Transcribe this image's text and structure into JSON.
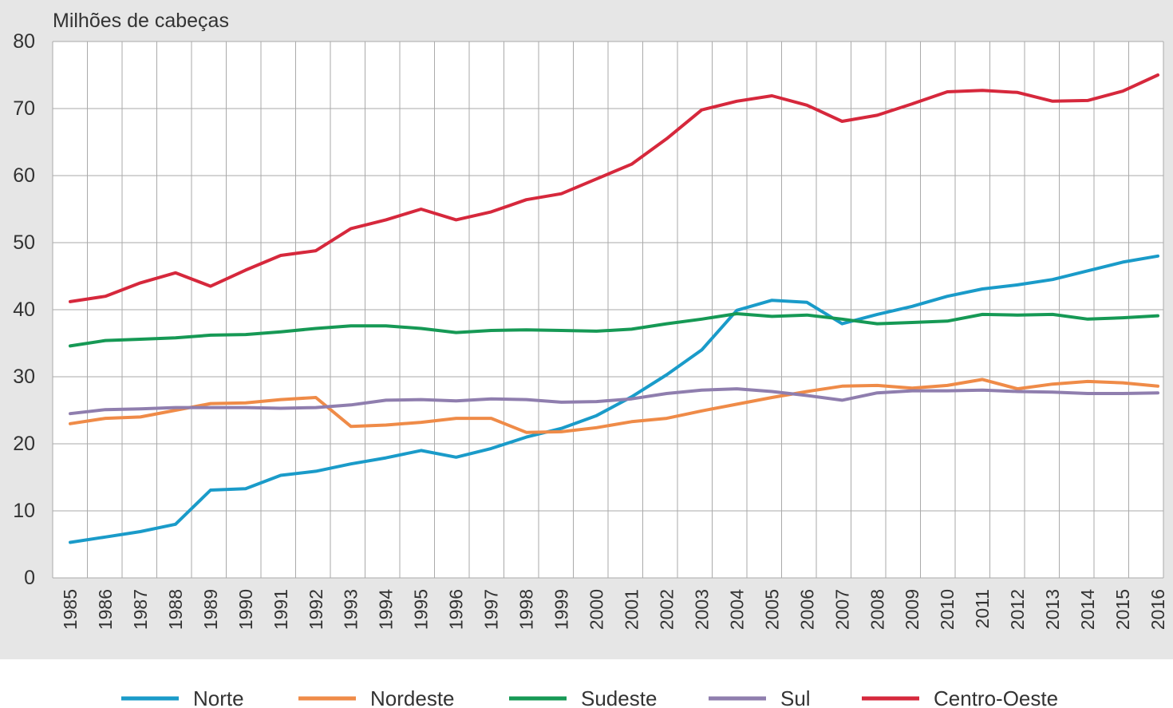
{
  "chart_data": {
    "type": "line",
    "title": "",
    "ylabel": "Milhões de cabeças",
    "xlabel": "",
    "ylim": [
      0,
      80
    ],
    "yticks": [
      "0",
      "10",
      "20",
      "30",
      "40",
      "50",
      "60",
      "70",
      "80"
    ],
    "grid": true,
    "legend_position": "bottom",
    "categories": [
      "1985",
      "1986",
      "1987",
      "1988",
      "1989",
      "1990",
      "1991",
      "1992",
      "1993",
      "1994",
      "1995",
      "1996",
      "1997",
      "1998",
      "1999",
      "2000",
      "2001",
      "2002",
      "2003",
      "2004",
      "2005",
      "2006",
      "2007",
      "2008",
      "2009",
      "2010",
      "2011",
      "2012",
      "2013",
      "2014",
      "2015",
      "2016"
    ],
    "series": [
      {
        "name": "Norte",
        "color": "#1a9bc9",
        "values": [
          5.3,
          6.1,
          6.9,
          8.0,
          13.1,
          13.3,
          15.3,
          15.9,
          17.0,
          17.9,
          19.0,
          18.0,
          19.3,
          21.0,
          22.3,
          24.2,
          27.0,
          30.3,
          34.0,
          39.9,
          41.4,
          41.1,
          37.9,
          39.3,
          40.5,
          42.0,
          43.1,
          43.7,
          44.5,
          45.8,
          47.1,
          48.0
        ]
      },
      {
        "name": "Nordeste",
        "color": "#ef8b48",
        "values": [
          23.0,
          23.8,
          24.0,
          25.0,
          26.0,
          26.1,
          26.6,
          26.9,
          22.6,
          22.8,
          23.2,
          23.8,
          23.8,
          21.7,
          21.8,
          22.4,
          23.3,
          23.8,
          24.9,
          25.9,
          26.9,
          27.8,
          28.6,
          28.7,
          28.3,
          28.7,
          29.6,
          28.2,
          28.9,
          29.3,
          29.1,
          28.6
        ]
      },
      {
        "name": "Sudeste",
        "color": "#169955",
        "values": [
          34.6,
          35.4,
          35.6,
          35.8,
          36.2,
          36.3,
          36.7,
          37.2,
          37.6,
          37.6,
          37.2,
          36.6,
          36.9,
          37.0,
          36.9,
          36.8,
          37.1,
          37.9,
          38.6,
          39.4,
          39.0,
          39.2,
          38.6,
          37.9,
          38.1,
          38.3,
          39.3,
          39.2,
          39.3,
          38.6,
          38.8,
          39.1
        ]
      },
      {
        "name": "Sul",
        "color": "#8f7eae",
        "values": [
          24.5,
          25.1,
          25.2,
          25.4,
          25.4,
          25.4,
          25.3,
          25.4,
          25.8,
          26.5,
          26.6,
          26.4,
          26.7,
          26.6,
          26.2,
          26.3,
          26.7,
          27.5,
          28.0,
          28.2,
          27.8,
          27.2,
          26.5,
          27.6,
          27.9,
          27.9,
          28.0,
          27.8,
          27.7,
          27.5,
          27.5,
          27.6
        ]
      },
      {
        "name": "Centro-Oeste",
        "color": "#d6283c",
        "values": [
          41.2,
          42.0,
          44.0,
          45.5,
          43.5,
          45.9,
          48.1,
          48.8,
          52.1,
          53.4,
          55.0,
          53.4,
          54.6,
          56.4,
          57.3,
          59.5,
          61.7,
          65.5,
          69.8,
          71.1,
          71.9,
          70.5,
          68.1,
          69.0,
          70.7,
          72.5,
          72.7,
          72.4,
          71.1,
          71.2,
          72.6,
          75.0
        ]
      }
    ]
  }
}
